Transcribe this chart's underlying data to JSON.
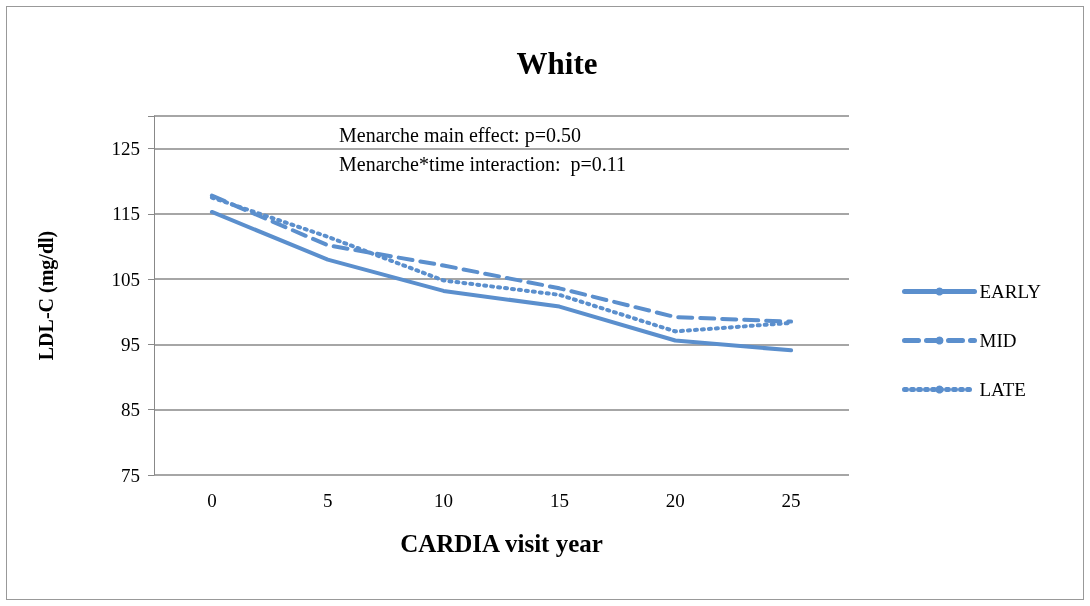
{
  "chart_data": {
    "type": "line",
    "title": "White",
    "xlabel": "CARDIA visit year",
    "ylabel": "LDL-C (mg/dl)",
    "annotations": [
      "Menarche main effect: p=0.50",
      "Menarche*time interaction:  p=0.11"
    ],
    "categories": [
      "0",
      "5",
      "10",
      "15",
      "20",
      "25"
    ],
    "series": [
      {
        "name": "EARLY",
        "color": "#5b8fcd",
        "line_style": "solid",
        "values": [
          115.3,
          108.0,
          103.2,
          100.8,
          95.6,
          94.1
        ]
      },
      {
        "name": "MID",
        "color": "#5b8fcd",
        "line_style": "dashed",
        "values": [
          117.8,
          110.2,
          107.1,
          103.6,
          99.2,
          98.5
        ]
      },
      {
        "name": "LATE",
        "color": "#5b8fcd",
        "line_style": "dotted",
        "values": [
          117.5,
          111.5,
          104.8,
          102.6,
          97.0,
          98.3
        ]
      }
    ],
    "ylim": [
      75,
      130
    ],
    "yticks": [
      75,
      85,
      95,
      105,
      115,
      125,
      {
        "value": 130,
        "label": null
      }
    ],
    "grid": "y",
    "legend": "right",
    "marker": "none"
  }
}
